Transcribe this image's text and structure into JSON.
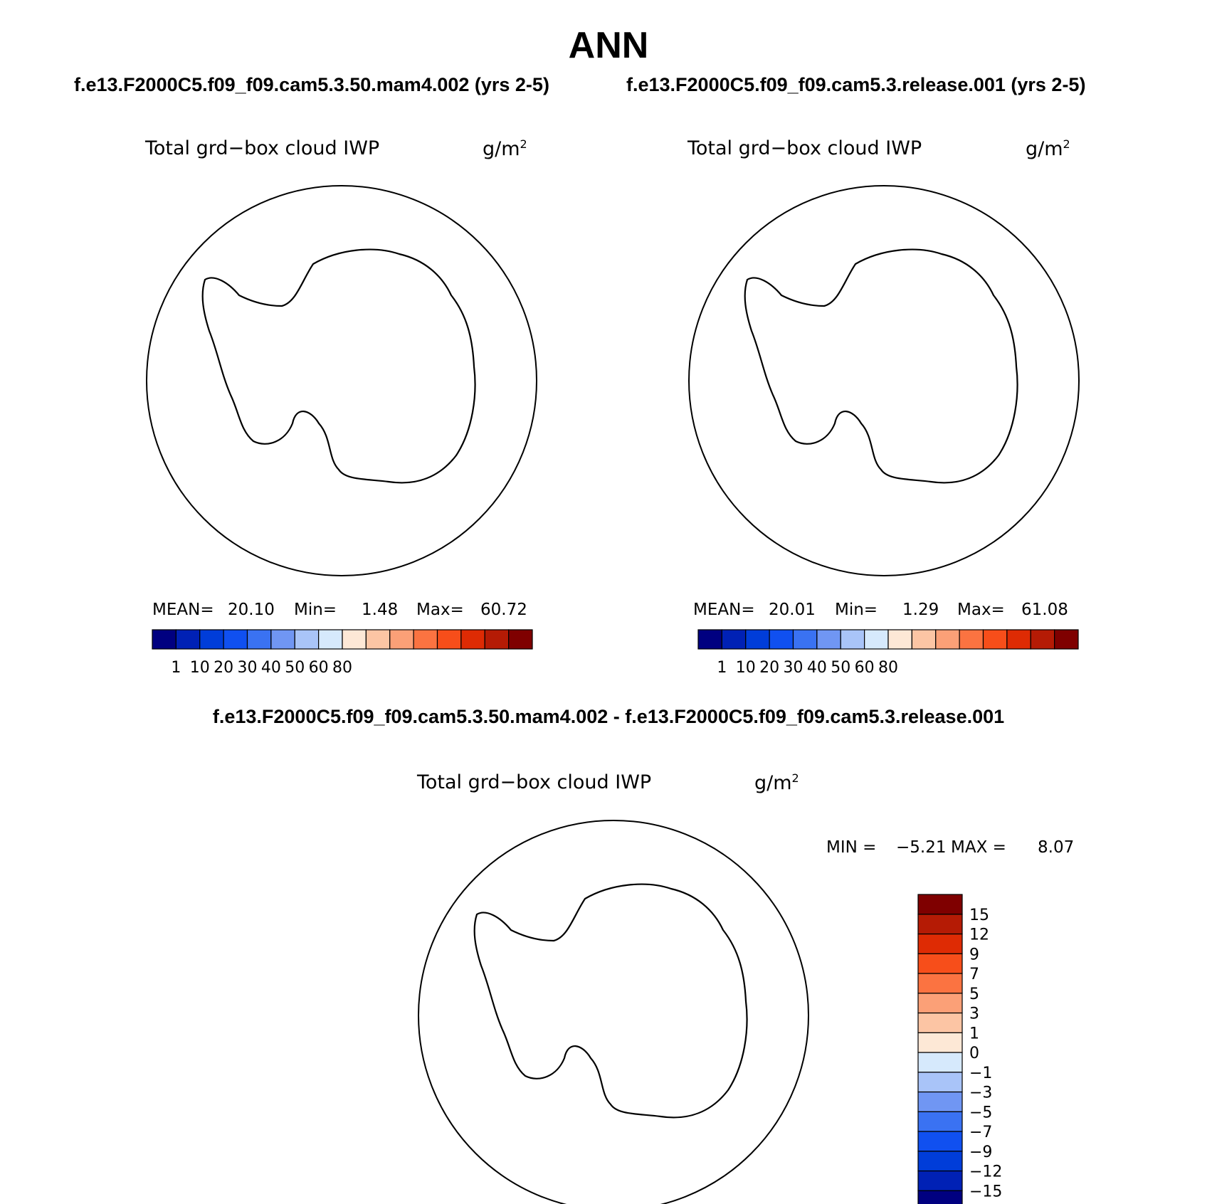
{
  "header": {
    "title": "ANN",
    "case1_title": "f.e13.F2000C5.f09_f09.cam5.3.50.mam4.002 (yrs 2-5)",
    "case2_title": "f.e13.F2000C5.f09_f09.cam5.3.release.001 (yrs 2-5)",
    "diff_title": "f.e13.F2000C5.f09_f09.cam5.3.50.mam4.002 - f.e13.F2000C5.f09_f09.cam5.3.release.001"
  },
  "panels": [
    {
      "variable": "Total grd−box cloud IWP",
      "units_base": "g/m",
      "units_sup": "2",
      "stats": {
        "mean_label": "MEAN=",
        "mean": "20.10",
        "min_label": "Min=",
        "min": "1.48",
        "max_label": "Max=",
        "max": "60.72"
      }
    },
    {
      "variable": "Total grd−box cloud IWP",
      "units_base": "g/m",
      "units_sup": "2",
      "stats": {
        "mean_label": "MEAN=",
        "mean": "20.01",
        "min_label": "Min=",
        "min": "1.29",
        "max_label": "Max=",
        "max": "61.08"
      }
    },
    {
      "variable": "Total grd−box cloud IWP",
      "units_base": "g/m",
      "units_sup": "2",
      "stats": {
        "min_label": "MIN =",
        "min": "−5.21",
        "max_label": "MAX =",
        "max": "8.07"
      }
    }
  ],
  "colorbars": {
    "absolute": {
      "colors": [
        "#000080",
        "#0021b5",
        "#003dd9",
        "#1050f0",
        "#3a72f2",
        "#7096f3",
        "#a9c4f8",
        "#d6e9fc",
        "#fde8d6",
        "#fcc5a4",
        "#fba077",
        "#fb7341",
        "#f74e1a",
        "#de2b04",
        "#b51b05",
        "#7f0000"
      ],
      "labels": [
        "1",
        "10",
        "20",
        "30",
        "40",
        "50",
        "60",
        "80"
      ]
    },
    "difference": {
      "colors": [
        "#000080",
        "#0021b5",
        "#003dd9",
        "#1050f0",
        "#3a72f2",
        "#7096f3",
        "#a9c4f8",
        "#d6e9fc",
        "#fde8d6",
        "#fcc5a4",
        "#fba077",
        "#fb7341",
        "#f74e1a",
        "#de2b04",
        "#b51b05",
        "#7f0000"
      ],
      "labels": [
        "−15",
        "−12",
        "−9",
        "−7",
        "−5",
        "−3",
        "−1",
        "0",
        "1",
        "3",
        "5",
        "7",
        "9",
        "12",
        "15"
      ]
    }
  }
}
